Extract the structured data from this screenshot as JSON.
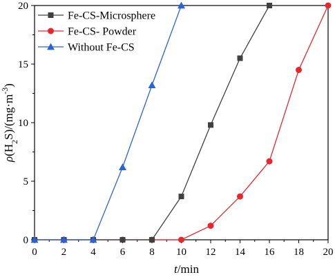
{
  "chart_data": {
    "type": "line",
    "xlabel": "t/min",
    "ylabel": "ρ(H2S)/(mg·m-3)",
    "xlim": [
      0,
      20
    ],
    "ylim": [
      0,
      20
    ],
    "xticks": [
      0,
      2,
      4,
      6,
      8,
      10,
      12,
      14,
      16,
      18,
      20
    ],
    "yticks": [
      0,
      5,
      10,
      15,
      20
    ],
    "legend_position": "top-left",
    "series": [
      {
        "name": "Fe-CS-Microsphere",
        "color": "#404040",
        "marker": "square",
        "x": [
          0,
          2,
          4,
          6,
          8,
          10,
          12,
          14,
          16
        ],
        "y": [
          0,
          0,
          0,
          0,
          0,
          3.7,
          9.8,
          15.5,
          20
        ]
      },
      {
        "name": "Fe-CS- Powder",
        "color": "#e8262d",
        "marker": "circle",
        "x": [
          0,
          2,
          4,
          6,
          8,
          10,
          12,
          14,
          16,
          18,
          20
        ],
        "y": [
          0,
          0,
          0,
          0,
          0,
          0,
          1.2,
          3.7,
          6.7,
          14.5,
          20
        ]
      },
      {
        "name": "Without Fe-CS",
        "color": "#2a63d6",
        "marker": "triangle",
        "x": [
          0,
          2,
          4,
          6,
          8,
          10
        ],
        "y": [
          0,
          0,
          0,
          6.2,
          13.2,
          20
        ]
      }
    ]
  }
}
